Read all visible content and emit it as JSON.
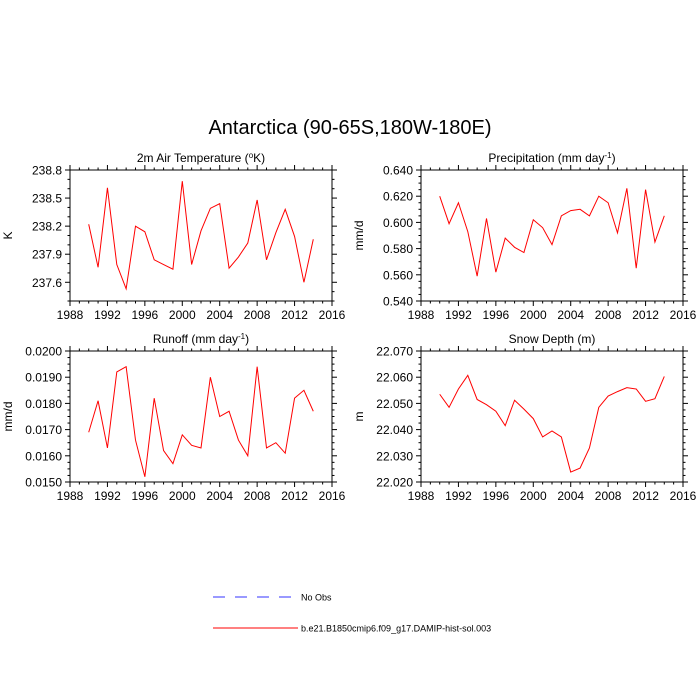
{
  "figure": {
    "title": "Antarctica (90-65S,180W-180E)"
  },
  "legend": [
    {
      "label": "No Obs",
      "color": "#3333ff",
      "dashed": true
    },
    {
      "label": "b.e21.B1850cmip6.f09_g17.DAMIP-hist-sol.003",
      "color": "#ff0000",
      "dashed": false
    }
  ],
  "chart_data": [
    {
      "type": "line",
      "title_main": "2m Air Temperature (",
      "title_sup": "o",
      "title_tail": "K)",
      "ylabel": "K",
      "xlim": [
        1988,
        2016
      ],
      "x_ticks": [
        "1988",
        "1992",
        "1996",
        "2000",
        "2004",
        "2008",
        "2012",
        "2016"
      ],
      "ylim": [
        237.4,
        238.8
      ],
      "y_ticks": [
        "237.6",
        "237.9",
        "238.2",
        "238.5",
        "238.8"
      ],
      "x": [
        1990,
        1991,
        1992,
        1993,
        1994,
        1995,
        1996,
        1997,
        1998,
        1999,
        2000,
        2001,
        2002,
        2003,
        2004,
        2005,
        2006,
        2007,
        2008,
        2009,
        2010,
        2011,
        2012,
        2013,
        2014
      ],
      "series": [
        {
          "color": "#ff0000",
          "values": [
            238.22,
            237.76,
            238.61,
            237.79,
            237.53,
            238.2,
            238.14,
            237.84,
            237.79,
            237.74,
            238.68,
            237.79,
            238.15,
            238.39,
            238.44,
            237.75,
            237.87,
            238.02,
            238.48,
            237.84,
            238.13,
            238.38,
            238.09,
            237.6,
            238.06
          ]
        }
      ]
    },
    {
      "type": "line",
      "title_main": "Precipitation (mm day",
      "title_sup": "-1",
      "title_tail": ")",
      "ylabel": "mm/d",
      "xlim": [
        1988,
        2016
      ],
      "x_ticks": [
        "1988",
        "1992",
        "1996",
        "2000",
        "2004",
        "2008",
        "2012",
        "2016"
      ],
      "ylim": [
        0.54,
        0.64
      ],
      "y_ticks": [
        "0.540",
        "0.560",
        "0.580",
        "0.600",
        "0.620",
        "0.640"
      ],
      "x": [
        1990,
        1991,
        1992,
        1993,
        1994,
        1995,
        1996,
        1997,
        1998,
        1999,
        2000,
        2001,
        2002,
        2003,
        2004,
        2005,
        2006,
        2007,
        2008,
        2009,
        2010,
        2011,
        2012,
        2013,
        2014
      ],
      "series": [
        {
          "color": "#ff0000",
          "values": [
            0.62,
            0.599,
            0.615,
            0.593,
            0.559,
            0.603,
            0.562,
            0.588,
            0.581,
            0.577,
            0.602,
            0.596,
            0.583,
            0.605,
            0.609,
            0.61,
            0.605,
            0.62,
            0.615,
            0.592,
            0.626,
            0.565,
            0.625,
            0.585,
            0.605
          ]
        }
      ]
    },
    {
      "type": "line",
      "title_main": "Runoff (mm day",
      "title_sup": "-1",
      "title_tail": ")",
      "ylabel": "mm/d",
      "xlim": [
        1988,
        2016
      ],
      "x_ticks": [
        "1988",
        "1992",
        "1996",
        "2000",
        "2004",
        "2008",
        "2012",
        "2016"
      ],
      "ylim": [
        0.015,
        0.02
      ],
      "y_ticks": [
        "0.0150",
        "0.0160",
        "0.0170",
        "0.0180",
        "0.0190",
        "0.0200"
      ],
      "x": [
        1990,
        1991,
        1992,
        1993,
        1994,
        1995,
        1996,
        1997,
        1998,
        1999,
        2000,
        2001,
        2002,
        2003,
        2004,
        2005,
        2006,
        2007,
        2008,
        2009,
        2010,
        2011,
        2012,
        2013,
        2014
      ],
      "series": [
        {
          "color": "#ff0000",
          "values": [
            0.0169,
            0.0181,
            0.0163,
            0.0192,
            0.0194,
            0.0166,
            0.0152,
            0.0182,
            0.0162,
            0.0157,
            0.0168,
            0.0164,
            0.0163,
            0.019,
            0.0175,
            0.0177,
            0.0166,
            0.016,
            0.0194,
            0.0163,
            0.0165,
            0.0161,
            0.0182,
            0.0185,
            0.0177
          ]
        }
      ]
    },
    {
      "type": "line",
      "title_main": "Snow Depth (m)",
      "title_sup": "",
      "title_tail": "",
      "ylabel": "m",
      "xlim": [
        1988,
        2016
      ],
      "x_ticks": [
        "1988",
        "1992",
        "1996",
        "2000",
        "2004",
        "2008",
        "2012",
        "2016"
      ],
      "ylim": [
        22.02,
        22.07
      ],
      "y_ticks": [
        "22.020",
        "22.030",
        "22.040",
        "22.050",
        "22.060",
        "22.070"
      ],
      "x": [
        1990,
        1991,
        1992,
        1993,
        1994,
        1995,
        1996,
        1997,
        1998,
        1999,
        2000,
        2001,
        2002,
        2003,
        2004,
        2005,
        2006,
        2007,
        2008,
        2009,
        2010,
        2011,
        2012,
        2013,
        2014
      ],
      "series": [
        {
          "color": "#ff0000",
          "values": [
            22.0535,
            22.0485,
            22.0555,
            22.0607,
            22.0515,
            22.0495,
            22.047,
            22.0415,
            22.0512,
            22.0478,
            22.0442,
            22.0372,
            22.0395,
            22.0372,
            22.0238,
            22.0253,
            22.033,
            22.0485,
            22.0528,
            22.0545,
            22.056,
            22.0555,
            22.0508,
            22.0518,
            22.0603
          ]
        }
      ]
    }
  ]
}
